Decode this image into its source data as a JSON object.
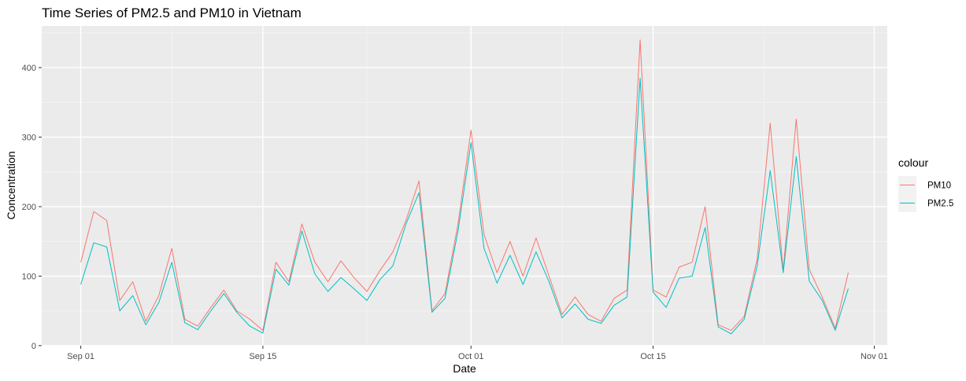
{
  "chart_data": {
    "type": "line",
    "title": "Time Series of PM2.5 and PM10 in Vietnam",
    "xlabel": "Date",
    "ylabel": "Concentration",
    "x_type": "date",
    "xlim": [
      "2023-08-29",
      "2023-11-02"
    ],
    "ylim": [
      0,
      460
    ],
    "x_ticks": [
      {
        "date": "2023-09-01",
        "label": "Sep 01"
      },
      {
        "date": "2023-09-15",
        "label": "Sep 15"
      },
      {
        "date": "2023-10-01",
        "label": "Oct 01"
      },
      {
        "date": "2023-10-15",
        "label": "Oct 15"
      },
      {
        "date": "2023-11-01",
        "label": "Nov 01"
      }
    ],
    "y_ticks": [
      0,
      100,
      200,
      300,
      400
    ],
    "grid": true,
    "legend_title": "colour",
    "legend_position": "right",
    "series": [
      {
        "name": "PM10",
        "color": "#F8766D",
        "values": [
          120,
          193,
          180,
          65,
          92,
          35,
          72,
          140,
          38,
          28,
          55,
          80,
          50,
          38,
          22,
          120,
          92,
          175,
          120,
          92,
          122,
          98,
          78,
          108,
          135,
          180,
          237,
          50,
          75,
          175,
          310,
          160,
          105,
          150,
          100,
          155,
          100,
          45,
          70,
          45,
          35,
          68,
          80,
          440,
          80,
          70,
          113,
          120,
          200,
          30,
          22,
          42,
          125,
          320,
          108,
          326,
          110,
          70,
          25,
          105
        ]
      },
      {
        "name": "PM2.5",
        "color": "#00BFC4",
        "values": [
          88,
          148,
          142,
          50,
          72,
          30,
          62,
          120,
          33,
          23,
          50,
          75,
          48,
          28,
          18,
          110,
          87,
          165,
          103,
          78,
          98,
          82,
          65,
          95,
          115,
          175,
          220,
          48,
          68,
          165,
          292,
          140,
          90,
          130,
          88,
          135,
          92,
          40,
          60,
          38,
          32,
          58,
          70,
          385,
          77,
          55,
          97,
          100,
          170,
          27,
          17,
          38,
          115,
          252,
          105,
          272,
          93,
          65,
          22,
          82
        ]
      }
    ],
    "x_start": "2023-09-01"
  }
}
